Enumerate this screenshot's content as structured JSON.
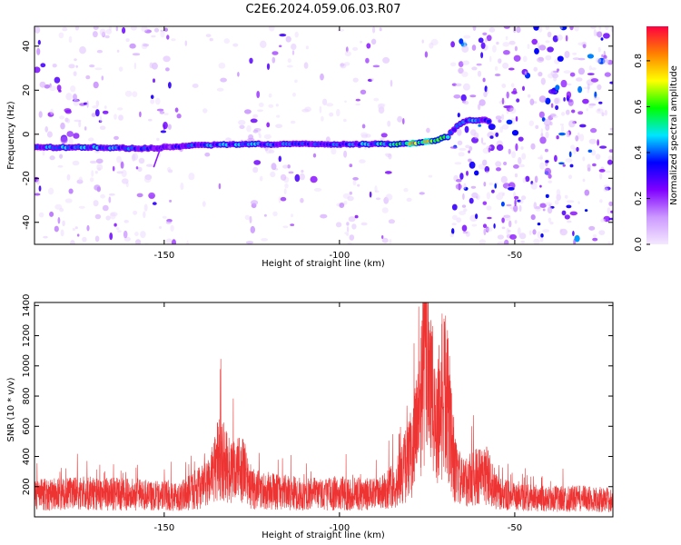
{
  "title": "C2E6.2024.059.06.03.R07",
  "chart_data": [
    {
      "type": "heatmap",
      "xlabel": "Height of straight line (km)",
      "ylabel": "Frequency (Hz)",
      "xlim": [
        -187,
        -22
      ],
      "ylim": [
        -50,
        49
      ],
      "xticks": [
        -150,
        -100,
        -50
      ],
      "yticks": [
        -40,
        -20,
        0,
        20,
        40
      ],
      "colorbar": {
        "label": "Normalized spectral amplitude",
        "range": [
          0,
          0.95
        ],
        "ticks": [
          0.0,
          0.2,
          0.4,
          0.6,
          0.8
        ],
        "colors": [
          "#ffffff",
          "#cc99ff",
          "#8000ff",
          "#0000ff",
          "#00e5ff",
          "#00ff00",
          "#ffff00",
          "#ff8000",
          "#ff0040"
        ]
      },
      "ridge": {
        "name": "",
        "x": [
          -187,
          -170,
          -155,
          -150,
          -140,
          -125,
          -110,
          -95,
          -85,
          -78,
          -73,
          -69,
          -67,
          -64,
          -60,
          -57
        ],
        "y": [
          -6,
          -6,
          -6.5,
          -6,
          -5,
          -4.5,
          -4.5,
          -4.5,
          -4.5,
          -4,
          -3,
          -1,
          3,
          6,
          6.5,
          6
        ],
        "amplitude": [
          0.45,
          0.5,
          0.4,
          0.3,
          0.45,
          0.5,
          0.4,
          0.45,
          0.6,
          0.9,
          0.75,
          0.55,
          0.4,
          0.45,
          0.5,
          0.35
        ]
      },
      "noise_bands": [
        {
          "x": [
            -187,
            -148
          ],
          "density": 0.55
        },
        {
          "x": [
            -148,
            -128
          ],
          "density": 0.12
        },
        {
          "x": [
            -128,
            -112
          ],
          "density": 0.45
        },
        {
          "x": [
            -112,
            -102
          ],
          "density": 0.18
        },
        {
          "x": [
            -102,
            -85
          ],
          "density": 0.45
        },
        {
          "x": [
            -85,
            -71
          ],
          "density": 0.08
        },
        {
          "x": [
            -68,
            -22
          ],
          "density": 1.0
        }
      ]
    },
    {
      "type": "line",
      "xlabel": "Height of straight line (km)",
      "ylabel": "SNR (10 * v/v)",
      "xlim": [
        -187,
        -22
      ],
      "ylim": [
        0,
        1420
      ],
      "xticks": [
        -150,
        -100,
        -50
      ],
      "yticks": [
        200,
        400,
        600,
        800,
        1000,
        1200,
        1400
      ],
      "series": [
        {
          "name": "",
          "color": "#ee3333",
          "envelope_x": [
            -187,
            -175,
            -160,
            -145,
            -138,
            -134,
            -131,
            -128,
            -125,
            -110,
            -100,
            -90,
            -84,
            -80,
            -77,
            -76,
            -75,
            -74,
            -73,
            -71,
            -70,
            -69,
            -68,
            -67,
            -65,
            -62,
            -58,
            -55,
            -50,
            -40,
            -30,
            -22
          ],
          "envelope_y": [
            160,
            170,
            160,
            150,
            230,
            440,
            300,
            360,
            200,
            160,
            170,
            160,
            230,
            420,
            700,
            1150,
            1260,
            1000,
            650,
            820,
            900,
            750,
            580,
            330,
            240,
            280,
            300,
            170,
            140,
            130,
            130,
            120
          ]
        }
      ]
    }
  ]
}
